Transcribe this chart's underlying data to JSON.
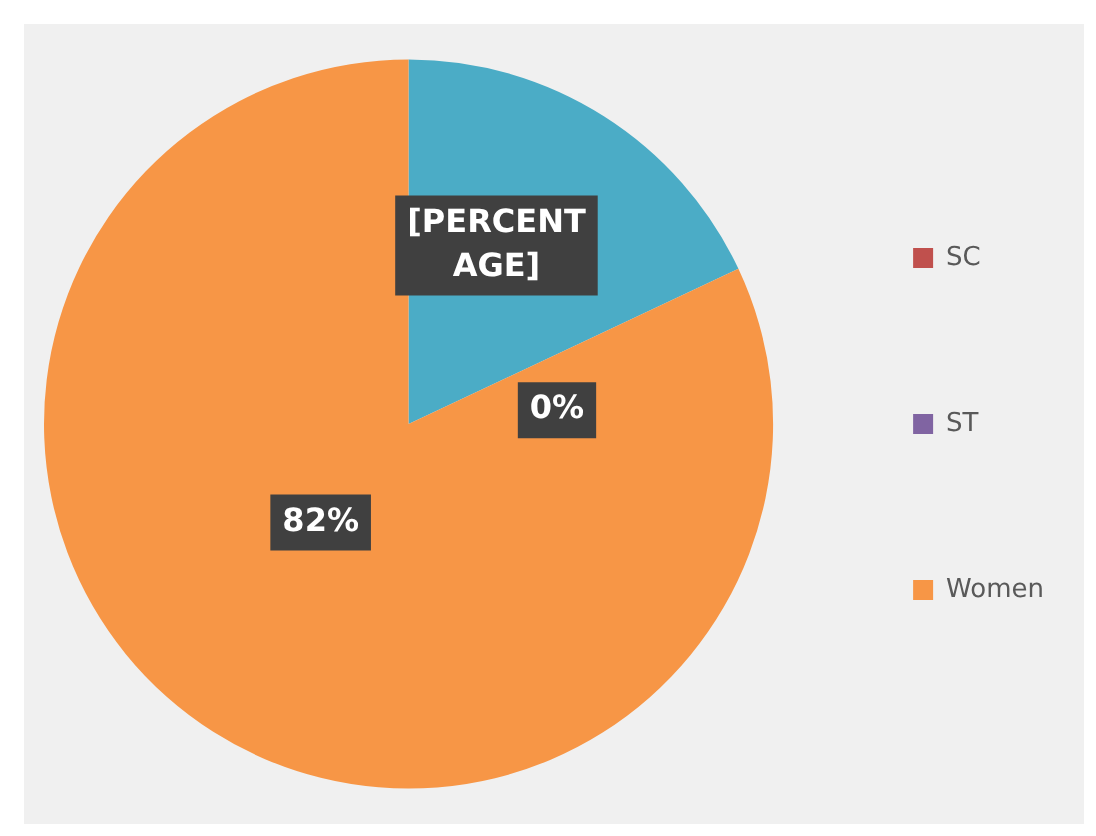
{
  "chart_data": {
    "type": "pie",
    "categories": [
      null,
      "SC",
      "ST",
      "Women"
    ],
    "values": [
      18,
      0,
      0,
      82
    ],
    "colors": [
      "#4bacc6",
      "#c0504d",
      "#8064a2",
      "#f79646"
    ],
    "value_labels": [
      "[PERCENTAGE]",
      null,
      "0%",
      "82%"
    ],
    "legend": "right"
  }
}
